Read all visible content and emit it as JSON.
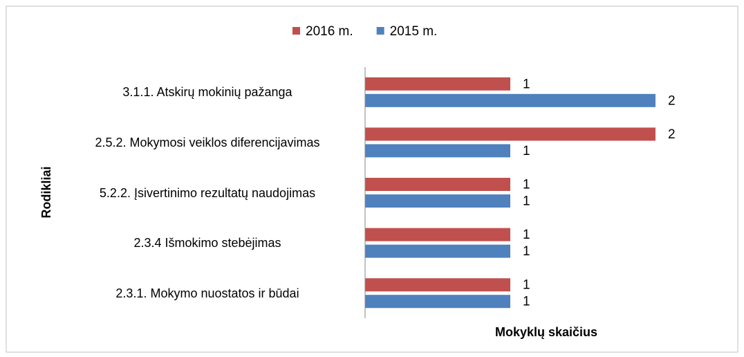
{
  "chart_data": {
    "type": "bar",
    "orientation": "horizontal",
    "categories": [
      "3.1.1. Atskirų mokinių pažanga",
      "2.5.2. Mokymosi veiklos diferencijavimas",
      "5.2.2. Įsivertinimo rezultatų naudojimas",
      "2.3.4 Išmokimo stebėjimas",
      "2.3.1. Mokymo nuostatos ir būdai"
    ],
    "series": [
      {
        "name": "2016 m.",
        "color": "#c0504d",
        "values": [
          1,
          2,
          1,
          1,
          1
        ]
      },
      {
        "name": "2015 m.",
        "color": "#4f81bd",
        "values": [
          2,
          1,
          1,
          1,
          1
        ]
      }
    ],
    "xlim": [
      0,
      2
    ],
    "xlabel": "Mokyklų skaičius",
    "ylabel": "Rodikliai",
    "legend": "top"
  }
}
